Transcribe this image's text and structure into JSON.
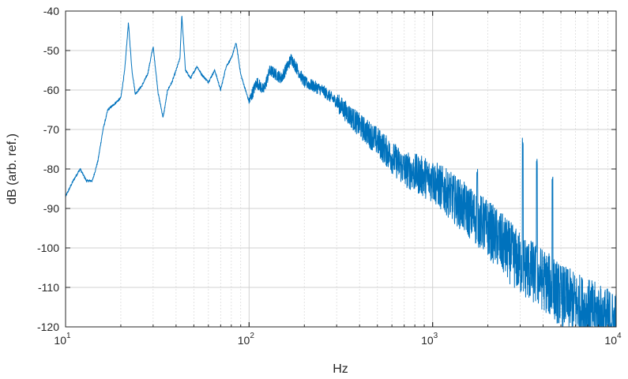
{
  "chart_data": {
    "type": "line",
    "xscale": "log",
    "xlabel": "Hz",
    "ylabel": "dB (arb. ref.)",
    "xlim": [
      10,
      10000
    ],
    "ylim": [
      -120,
      -40
    ],
    "grid": true,
    "line_color": "#0072BD",
    "x_ticks": [
      {
        "base": "10",
        "exp": "1"
      },
      {
        "base": "10",
        "exp": "2"
      },
      {
        "base": "10",
        "exp": "3"
      },
      {
        "base": "10",
        "exp": "4"
      }
    ],
    "y_ticks": [
      "-40",
      "-50",
      "-60",
      "-70",
      "-80",
      "-90",
      "-100",
      "-110",
      "-120"
    ],
    "anchors": [
      [
        10,
        -87
      ],
      [
        11,
        -83
      ],
      [
        12,
        -80
      ],
      [
        13,
        -83
      ],
      [
        14,
        -83
      ],
      [
        15,
        -78
      ],
      [
        16,
        -70
      ],
      [
        17,
        -65
      ],
      [
        18,
        -64
      ],
      [
        20,
        -62
      ],
      [
        21,
        -55
      ],
      [
        22,
        -43
      ],
      [
        23,
        -55
      ],
      [
        24,
        -61
      ],
      [
        26,
        -59
      ],
      [
        28,
        -56
      ],
      [
        30,
        -49
      ],
      [
        32,
        -61
      ],
      [
        34,
        -67
      ],
      [
        36,
        -60
      ],
      [
        38,
        -58
      ],
      [
        40,
        -55
      ],
      [
        42,
        -52
      ],
      [
        43,
        -41
      ],
      [
        45,
        -55
      ],
      [
        48,
        -57
      ],
      [
        52,
        -54
      ],
      [
        55,
        -56
      ],
      [
        60,
        -58
      ],
      [
        65,
        -55
      ],
      [
        70,
        -60
      ],
      [
        75,
        -54
      ],
      [
        80,
        -52
      ],
      [
        85,
        -48
      ],
      [
        90,
        -56
      ],
      [
        100,
        -63
      ],
      [
        110,
        -58
      ],
      [
        120,
        -60
      ],
      [
        130,
        -55
      ],
      [
        150,
        -57
      ],
      [
        170,
        -52
      ],
      [
        200,
        -58
      ],
      [
        250,
        -60
      ],
      [
        300,
        -63
      ],
      [
        400,
        -69
      ],
      [
        500,
        -73
      ],
      [
        600,
        -77
      ],
      [
        700,
        -80
      ],
      [
        800,
        -81
      ],
      [
        1000,
        -83
      ],
      [
        1200,
        -86
      ],
      [
        1500,
        -90
      ],
      [
        2000,
        -95
      ],
      [
        2500,
        -100
      ],
      [
        3000,
        -104
      ],
      [
        4000,
        -108
      ],
      [
        5000,
        -112
      ],
      [
        6000,
        -114
      ],
      [
        8000,
        -117
      ],
      [
        10000,
        -119
      ]
    ],
    "peaks": [
      [
        22,
        -43
      ],
      [
        30,
        -49
      ],
      [
        43,
        -41
      ],
      [
        85,
        -47
      ],
      [
        170,
        -50
      ],
      [
        1000,
        -79
      ],
      [
        1750,
        -80
      ],
      [
        3100,
        -72
      ],
      [
        3700,
        -77
      ],
      [
        4500,
        -82
      ]
    ]
  }
}
